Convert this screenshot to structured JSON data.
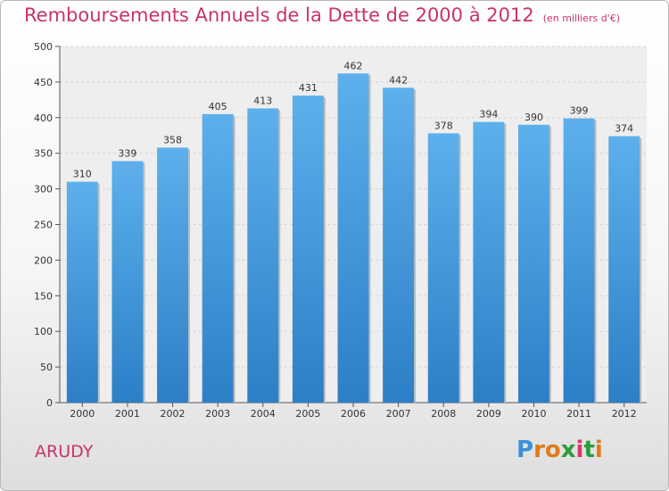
{
  "chart_data": {
    "type": "bar",
    "title": "Remboursements Annuels de la Dette de 2000 à 2012",
    "subtitle": "(en milliers d'€)",
    "categories": [
      "2000",
      "2001",
      "2002",
      "2003",
      "2004",
      "2005",
      "2006",
      "2007",
      "2008",
      "2009",
      "2010",
      "2011",
      "2012"
    ],
    "values": [
      310,
      339,
      358,
      405,
      413,
      431,
      462,
      442,
      378,
      394,
      390,
      399,
      374
    ],
    "value_labels": [
      "310",
      "339",
      "358",
      "405",
      "413",
      "431",
      "462",
      "442",
      "378",
      "394",
      "390",
      "399",
      "374"
    ],
    "ylim": [
      0,
      500
    ],
    "yticks": [
      "0",
      "50",
      "100",
      "150",
      "200",
      "250",
      "300",
      "350",
      "400",
      "450",
      "500"
    ],
    "grid": true,
    "bar_color": "#3f94d6",
    "title_color": "#c8336b"
  },
  "place": "ARUDY",
  "logo": {
    "letters": [
      "P",
      "r",
      "o",
      "x",
      "i",
      "t",
      "i"
    ],
    "colors": [
      "#3a8fd8",
      "#e07a1a",
      "#e07a1a",
      "#2a9d3a",
      "#d63a6a",
      "#2a9d3a",
      "#e07a1a"
    ]
  }
}
